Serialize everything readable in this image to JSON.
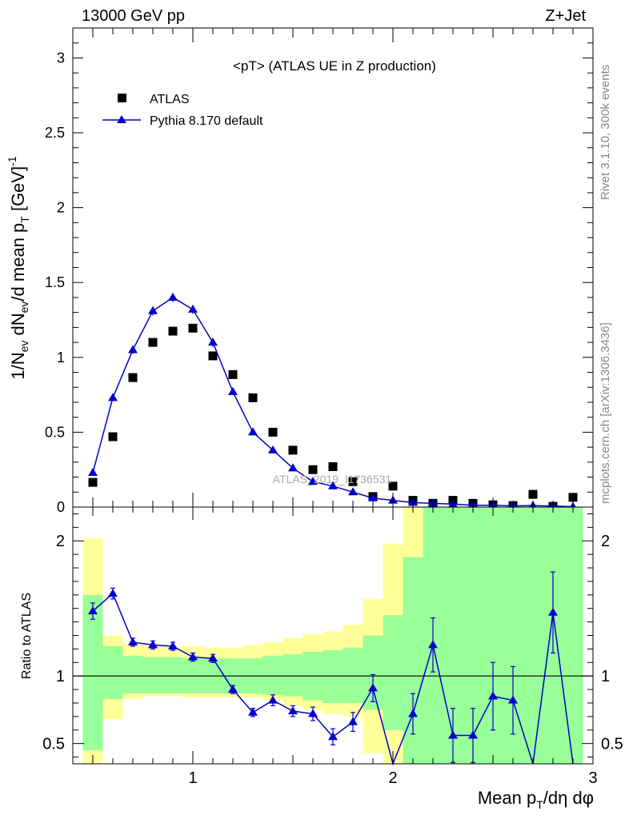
{
  "header": {
    "energy_label": "13000 GeV pp",
    "process_label": "Z+Jet"
  },
  "side": {
    "rivet_label": "Rivet 3.1.10,  300k events",
    "mcplots_label": "mcplots.cern.ch [arXiv:1306.3436]"
  },
  "colors": {
    "mc": "#0000cc",
    "data": "#000000",
    "band_green": "#99ff99",
    "band_yellow": "#ffff99"
  },
  "chart_data": [
    {
      "type": "scatter",
      "title": "<pT> (ATLAS UE in Z production)",
      "ylabel": "1/N_ev dN_ev/d mean p_T [GeV]^-1",
      "xlim": [
        0.4,
        3.0
      ],
      "ylim": [
        0,
        3.2
      ],
      "y_ticks": [
        0,
        0.5,
        1,
        1.5,
        2,
        2.5,
        3
      ],
      "y_tick_labels": [
        "0",
        "0.5",
        "1",
        "1.5",
        "2",
        "2.5",
        "3"
      ],
      "legend_position": "top-left",
      "watermark": "ATLAS_2019_I1736531",
      "series": [
        {
          "name": "ATLAS",
          "marker": "square",
          "x": [
            0.5,
            0.6,
            0.7,
            0.8,
            0.9,
            1.0,
            1.1,
            1.2,
            1.3,
            1.4,
            1.5,
            1.6,
            1.7,
            1.8,
            1.9,
            2.0,
            2.1,
            2.2,
            2.3,
            2.4,
            2.5,
            2.6,
            2.7,
            2.8,
            2.9
          ],
          "y": [
            0.165,
            0.47,
            0.865,
            1.1,
            1.175,
            1.195,
            1.01,
            0.885,
            0.73,
            0.5,
            0.38,
            0.25,
            0.27,
            0.17,
            0.07,
            0.14,
            0.045,
            0.025,
            0.045,
            0.025,
            0.015,
            0.01,
            0.085,
            0.005,
            0.065
          ]
        },
        {
          "name": "Pythia 8.170 default",
          "marker": "triangle",
          "x": [
            0.5,
            0.6,
            0.7,
            0.8,
            0.9,
            1.0,
            1.1,
            1.2,
            1.3,
            1.4,
            1.5,
            1.6,
            1.7,
            1.8,
            1.9,
            2.0,
            2.1,
            2.2,
            2.3,
            2.4,
            2.5,
            2.6,
            2.7,
            2.8,
            2.9
          ],
          "y": [
            0.23,
            0.73,
            1.05,
            1.31,
            1.4,
            1.32,
            1.1,
            0.77,
            0.5,
            0.38,
            0.26,
            0.17,
            0.14,
            0.1,
            0.06,
            0.045,
            0.03,
            0.025,
            0.02,
            0.012,
            0.012,
            0.008,
            0.01,
            0.007,
            0.003
          ],
          "yerr": [
            0.01,
            0.02,
            0.025,
            0.03,
            0.03,
            0.03,
            0.03,
            0.02,
            0.015,
            0.01,
            0.01,
            0.008,
            0.008,
            0.006,
            0.005,
            0.004,
            0.004,
            0.003,
            0.003,
            0.002,
            0.002,
            0.002,
            0.002,
            0.002,
            0.001
          ]
        }
      ]
    },
    {
      "type": "line",
      "ylabel": "Ratio to ATLAS",
      "xlabel": "Mean p_T/dη dφ",
      "xlim": [
        0.4,
        3.0
      ],
      "ylim": [
        0.35,
        2.25
      ],
      "reference_line": 1,
      "x_ticks": [
        1,
        2,
        3
      ],
      "x_tick_labels": [
        "1",
        "2",
        "3"
      ],
      "y_ticks": [
        0.5,
        1,
        2
      ],
      "y_tick_labels": [
        "0.5",
        "1",
        "2"
      ],
      "bins": [
        0.45,
        0.55,
        0.65,
        0.75,
        0.85,
        0.95,
        1.05,
        1.15,
        1.25,
        1.35,
        1.45,
        1.55,
        1.65,
        1.75,
        1.85,
        1.95,
        2.05,
        2.15,
        2.25,
        2.35,
        2.45,
        2.55,
        2.65,
        2.75,
        2.85,
        2.95
      ],
      "band_green": {
        "lo": [
          0.45,
          0.83,
          0.87,
          0.87,
          0.87,
          0.87,
          0.87,
          0.87,
          0.87,
          0.86,
          0.85,
          0.82,
          0.8,
          0.8,
          0.75,
          0.6,
          0.3,
          0.3,
          0.3,
          0.3,
          0.3,
          0.3,
          0.3,
          0.3,
          0.3
        ],
        "hi": [
          1.6,
          1.22,
          1.15,
          1.14,
          1.14,
          1.13,
          1.13,
          1.13,
          1.13,
          1.15,
          1.16,
          1.18,
          1.19,
          1.21,
          1.3,
          1.45,
          1.88,
          2.3,
          2.3,
          2.3,
          2.3,
          2.3,
          2.3,
          2.3,
          2.3
        ]
      },
      "band_yellow": {
        "lo": [
          0.3,
          0.68,
          0.83,
          0.85,
          0.85,
          0.84,
          0.84,
          0.84,
          0.84,
          0.82,
          0.78,
          0.75,
          0.72,
          0.7,
          0.43,
          0.32,
          0.3,
          0.3,
          0.3,
          0.3,
          0.3,
          0.3,
          0.3,
          0.3,
          0.3
        ],
        "hi": [
          2.02,
          1.3,
          1.24,
          1.23,
          1.22,
          1.22,
          1.21,
          1.21,
          1.23,
          1.25,
          1.28,
          1.31,
          1.33,
          1.38,
          1.57,
          1.98,
          2.3,
          2.3,
          2.3,
          2.3,
          2.3,
          2.3,
          2.3,
          2.3,
          2.3
        ]
      },
      "series": [
        {
          "name": "Pythia 8.170 default",
          "x": [
            0.5,
            0.6,
            0.7,
            0.8,
            0.9,
            1.0,
            1.1,
            1.2,
            1.3,
            1.4,
            1.5,
            1.6,
            1.7,
            1.8,
            1.9,
            2.0,
            2.1,
            2.2,
            2.3,
            2.4,
            2.5,
            2.6,
            2.7,
            2.8,
            2.9
          ],
          "y": [
            1.48,
            1.61,
            1.25,
            1.23,
            1.22,
            1.14,
            1.13,
            0.9,
            0.73,
            0.82,
            0.74,
            0.72,
            0.55,
            0.66,
            0.91,
            0.2,
            0.72,
            1.23,
            0.56,
            0.56,
            0.85,
            0.82,
            0.1,
            1.47,
            0.05
          ],
          "yerr": [
            0.06,
            0.04,
            0.03,
            0.03,
            0.03,
            0.03,
            0.03,
            0.03,
            0.03,
            0.04,
            0.04,
            0.05,
            0.06,
            0.07,
            0.1,
            0.1,
            0.15,
            0.2,
            0.2,
            0.2,
            0.25,
            0.25,
            0.1,
            0.3,
            0.05
          ]
        }
      ]
    }
  ]
}
